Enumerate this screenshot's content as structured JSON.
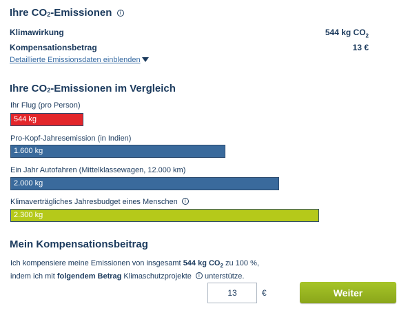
{
  "emissions": {
    "title_pre": "Ihre CO",
    "title_sub": "2",
    "title_post": "-Emissionen",
    "info_icon": "info-circle-icon",
    "climate_effect_label": "Klimawirkung",
    "climate_effect_value": "544 kg CO",
    "climate_effect_sub": "2",
    "compensation_label": "Kompensationsbetrag",
    "compensation_value": "13 €",
    "details_link": "Detaillierte Emissionsdaten einblenden",
    "details_icon": "triangle-down-icon"
  },
  "comparison": {
    "title_pre": "Ihre CO",
    "title_sub": "2",
    "title_post": "-Emissionen im Vergleich",
    "bars": [
      {
        "label": "Ihr Flug (pro Person)",
        "value_text": "544 kg",
        "value": 544,
        "color": "#e3262b"
      },
      {
        "label": "Pro-Kopf-Jahresemission (in Indien)",
        "value_text": "1.600 kg",
        "value": 1600,
        "color": "#3a6a9c"
      },
      {
        "label": "Ein Jahr Autofahren (Mittelklassewagen, 12.000 km)",
        "value_text": "2.000 kg",
        "value": 2000,
        "color": "#3a6a9c"
      },
      {
        "label": "Klimaverträgliches Jahresbudget eines Menschen",
        "value_text": "2.300 kg",
        "value": 2300,
        "color": "#b5c91a"
      }
    ]
  },
  "compensation": {
    "title": "Mein Kompensationsbeitrag",
    "line1_a": "Ich kompensiere meine Emissionen von insgesamt ",
    "line1_b": "544 kg CO",
    "line1_sub": "2",
    "line1_c": " zu 100  %,",
    "line2_a": "indem ich mit ",
    "line2_b": "folgendem Betrag",
    "line2_c": " Klimaschutzprojekte ",
    "line2_d": " unterstütze.",
    "amount_value": "13",
    "currency": "€",
    "button_label": "Weiter",
    "button_color": "#9ab824"
  }
}
